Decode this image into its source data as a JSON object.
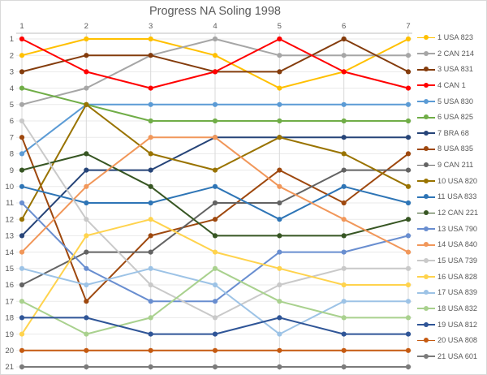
{
  "title": "Progress NA Soling 1998",
  "axes": {
    "x_ticks": [
      "1",
      "2",
      "3",
      "4",
      "5",
      "6",
      "7"
    ],
    "y_ticks": [
      "1",
      "2",
      "3",
      "4",
      "5",
      "6",
      "7",
      "8",
      "9",
      "10",
      "11",
      "12",
      "13",
      "14",
      "15",
      "16",
      "17",
      "18",
      "19",
      "20",
      "21"
    ]
  },
  "colors": {
    "title_text": "#595959",
    "tick_text": "#595959",
    "grid_vertical": "#d9d9d9",
    "grid_horizontal": "#eaeaea",
    "axis_line": "#bfbfbf",
    "frame": "#d9d9d9",
    "background": "#ffffff"
  },
  "chart_data": {
    "type": "line",
    "title": "Progress NA Soling 1998",
    "xlabel": "",
    "ylabel": "",
    "x": [
      1,
      2,
      3,
      4,
      5,
      6,
      7
    ],
    "y_axis": {
      "range": [
        1,
        21
      ],
      "inverted": true,
      "meaning": "standing position (1 = leader), ties share a value"
    },
    "grid": true,
    "legend_position": "right",
    "marker": "circle",
    "series": [
      {
        "name": "1 USA 823",
        "color": "#FFC000",
        "values": [
          2,
          1,
          1,
          2,
          4,
          3,
          1
        ]
      },
      {
        "name": "2 CAN 214",
        "color": "#A6A6A6",
        "values": [
          5,
          4,
          2,
          1,
          2,
          2,
          2
        ]
      },
      {
        "name": "3 USA 831",
        "color": "#843C0C",
        "values": [
          3,
          2,
          2,
          3,
          3,
          1,
          3
        ]
      },
      {
        "name": "4 CAN 1",
        "color": "#FF0000",
        "values": [
          1,
          3,
          4,
          3,
          1,
          3,
          4
        ]
      },
      {
        "name": "5 USA 830",
        "color": "#5B9BD5",
        "values": [
          8,
          5,
          5,
          5,
          5,
          5,
          5
        ]
      },
      {
        "name": "6 USA 825",
        "color": "#70AD47",
        "values": [
          4,
          5,
          6,
          6,
          6,
          6,
          6
        ]
      },
      {
        "name": "7 BRA 68",
        "color": "#264478",
        "values": [
          13,
          9,
          9,
          7,
          7,
          7,
          7
        ]
      },
      {
        "name": "8 USA 835",
        "color": "#9E480E",
        "values": [
          7,
          17,
          13,
          12,
          9,
          11,
          8
        ]
      },
      {
        "name": "9 CAN 211",
        "color": "#636363",
        "values": [
          16,
          14,
          14,
          11,
          11,
          9,
          9
        ]
      },
      {
        "name": "10 USA 820",
        "color": "#997300",
        "values": [
          12,
          5,
          8,
          9,
          7,
          8,
          10
        ]
      },
      {
        "name": "11 USA 833",
        "color": "#2E75B6",
        "values": [
          10,
          11,
          11,
          10,
          12,
          10,
          11
        ]
      },
      {
        "name": "12 CAN 221",
        "color": "#375623",
        "values": [
          9,
          8,
          10,
          13,
          13,
          13,
          12
        ]
      },
      {
        "name": "13 USA 790",
        "color": "#698ED0",
        "values": [
          11,
          15,
          17,
          17,
          14,
          14,
          13
        ]
      },
      {
        "name": "14 USA 840",
        "color": "#F1975A",
        "values": [
          14,
          10,
          7,
          7,
          10,
          12,
          14
        ]
      },
      {
        "name": "15 USA 739",
        "color": "#C9C9C9",
        "values": [
          6,
          12,
          16,
          18,
          16,
          15,
          15
        ]
      },
      {
        "name": "16 USA 828",
        "color": "#FFD34D",
        "values": [
          19,
          13,
          12,
          14,
          15,
          16,
          16
        ]
      },
      {
        "name": "17 USA 839",
        "color": "#9DC3E6",
        "values": [
          15,
          16,
          15,
          16,
          19,
          17,
          17
        ]
      },
      {
        "name": "18 USA 832",
        "color": "#A9D18E",
        "values": [
          17,
          19,
          18,
          15,
          17,
          18,
          18
        ]
      },
      {
        "name": "19 USA 812",
        "color": "#2F5597",
        "values": [
          18,
          18,
          19,
          19,
          18,
          19,
          19
        ]
      },
      {
        "name": "20 USA 808",
        "color": "#C55A11",
        "values": [
          20,
          20,
          20,
          20,
          20,
          20,
          20
        ]
      },
      {
        "name": "21 USA 601",
        "color": "#7B7B7B",
        "values": [
          21,
          21,
          21,
          21,
          21,
          21,
          21
        ]
      }
    ]
  }
}
